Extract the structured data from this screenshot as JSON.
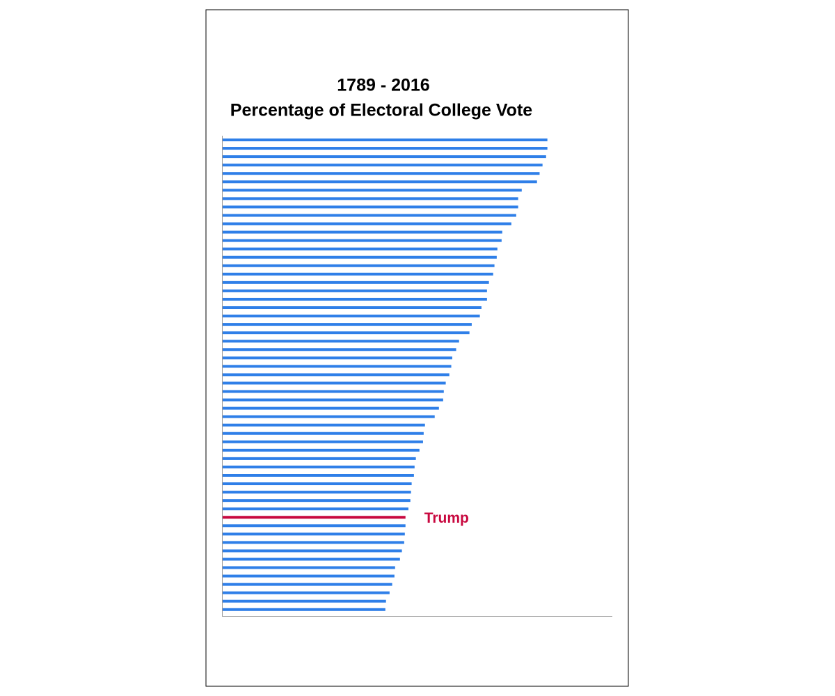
{
  "chart_data": {
    "type": "bar",
    "orientation": "horizontal",
    "title": "1789 - 2016",
    "subtitle": "Percentage of Electoral College Vote",
    "categories": [
      null,
      null,
      null,
      null,
      null,
      null,
      null,
      null,
      null,
      null,
      null,
      null,
      null,
      null,
      null,
      null,
      null,
      null,
      null,
      null,
      null,
      null,
      null,
      null,
      null,
      null,
      null,
      null,
      null,
      null,
      null,
      null,
      null,
      null,
      null,
      null,
      null,
      null,
      null,
      null,
      null,
      null,
      null,
      null,
      null,
      "Trump",
      null,
      null,
      null,
      null,
      null,
      null,
      null,
      null,
      null,
      null,
      null
    ],
    "values": [
      100.0,
      100.0,
      99.6,
      98.5,
      97.6,
      96.8,
      92.1,
      91.0,
      91.0,
      90.4,
      88.9,
      86.1,
      85.9,
      84.6,
      84.4,
      83.7,
      83.3,
      82.0,
      81.4,
      81.4,
      79.7,
      79.2,
      76.7,
      76.0,
      72.8,
      71.9,
      70.7,
      70.4,
      69.8,
      68.7,
      68.1,
      67.9,
      66.6,
      65.3,
      62.3,
      61.9,
      61.7,
      60.6,
      59.5,
      59.1,
      58.9,
      58.2,
      58.0,
      57.8,
      57.2,
      56.3,
      56.3,
      56.1,
      55.9,
      55.2,
      54.6,
      53.1,
      52.9,
      52.2,
      51.4,
      50.3,
      50.1
    ],
    "colors": [
      "#2f7fe8",
      "#2f7fe8",
      "#2f7fe8",
      "#2f7fe8",
      "#2f7fe8",
      "#2f7fe8",
      "#2f7fe8",
      "#2f7fe8",
      "#2f7fe8",
      "#2f7fe8",
      "#2f7fe8",
      "#2f7fe8",
      "#2f7fe8",
      "#2f7fe8",
      "#2f7fe8",
      "#2f7fe8",
      "#2f7fe8",
      "#2f7fe8",
      "#2f7fe8",
      "#2f7fe8",
      "#2f7fe8",
      "#2f7fe8",
      "#2f7fe8",
      "#2f7fe8",
      "#2f7fe8",
      "#2f7fe8",
      "#2f7fe8",
      "#2f7fe8",
      "#2f7fe8",
      "#2f7fe8",
      "#2f7fe8",
      "#2f7fe8",
      "#2f7fe8",
      "#2f7fe8",
      "#2f7fe8",
      "#2f7fe8",
      "#2f7fe8",
      "#2f7fe8",
      "#2f7fe8",
      "#2f7fe8",
      "#2f7fe8",
      "#2f7fe8",
      "#2f7fe8",
      "#2f7fe8",
      "#2f7fe8",
      "#c8083f",
      "#2f7fe8",
      "#2f7fe8",
      "#2f7fe8",
      "#2f7fe8",
      "#2f7fe8",
      "#2f7fe8",
      "#2f7fe8",
      "#2f7fe8",
      "#2f7fe8",
      "#2f7fe8",
      "#2f7fe8"
    ],
    "xlim": [
      0,
      120
    ]
  }
}
